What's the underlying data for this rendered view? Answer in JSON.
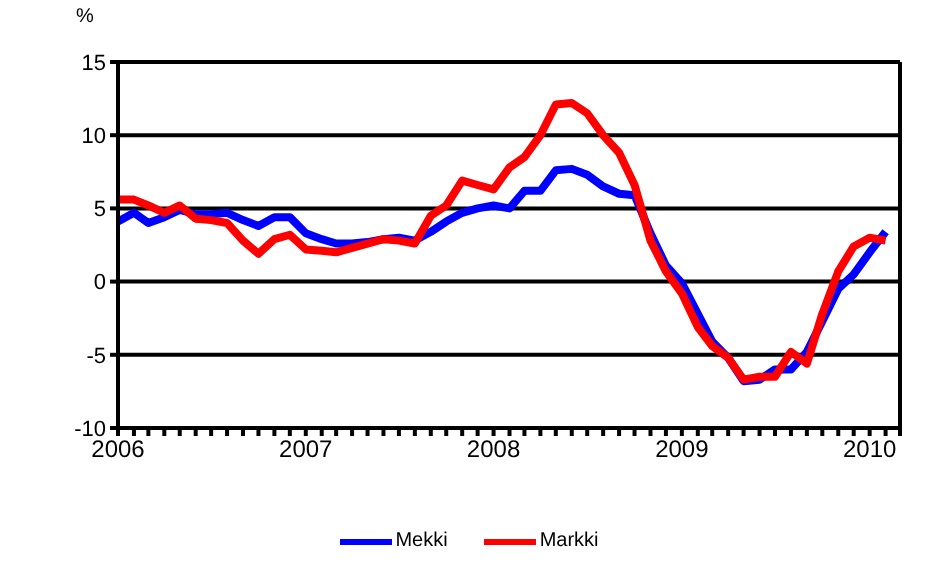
{
  "chart_data": {
    "type": "line",
    "ylabel": "%",
    "ylim": [
      -10,
      15
    ],
    "yticks": [
      -10,
      -5,
      0,
      5,
      10,
      15
    ],
    "grid": "y",
    "legend": "bottom",
    "marker": "none",
    "line_style": "solid",
    "xlim": [
      "2006-01",
      "2010-03"
    ],
    "xticks": [
      {
        "value": "2006-01",
        "label": "2006"
      },
      {
        "value": "2006-02",
        "label": null
      },
      {
        "value": "2006-03",
        "label": null
      },
      {
        "value": "2006-04",
        "label": null
      },
      {
        "value": "2006-05",
        "label": null
      },
      {
        "value": "2006-06",
        "label": null
      },
      {
        "value": "2006-07",
        "label": null
      },
      {
        "value": "2006-08",
        "label": null
      },
      {
        "value": "2006-09",
        "label": null
      },
      {
        "value": "2006-10",
        "label": null
      },
      {
        "value": "2006-11",
        "label": null
      },
      {
        "value": "2006-12",
        "label": null
      },
      {
        "value": "2007-01",
        "label": "2007"
      },
      {
        "value": "2007-02",
        "label": null
      },
      {
        "value": "2007-03",
        "label": null
      },
      {
        "value": "2007-04",
        "label": null
      },
      {
        "value": "2007-05",
        "label": null
      },
      {
        "value": "2007-06",
        "label": null
      },
      {
        "value": "2007-07",
        "label": null
      },
      {
        "value": "2007-08",
        "label": null
      },
      {
        "value": "2007-09",
        "label": null
      },
      {
        "value": "2007-10",
        "label": null
      },
      {
        "value": "2007-11",
        "label": null
      },
      {
        "value": "2007-12",
        "label": null
      },
      {
        "value": "2008-01",
        "label": "2008"
      },
      {
        "value": "2008-02",
        "label": null
      },
      {
        "value": "2008-03",
        "label": null
      },
      {
        "value": "2008-04",
        "label": null
      },
      {
        "value": "2008-05",
        "label": null
      },
      {
        "value": "2008-06",
        "label": null
      },
      {
        "value": "2008-07",
        "label": null
      },
      {
        "value": "2008-08",
        "label": null
      },
      {
        "value": "2008-09",
        "label": null
      },
      {
        "value": "2008-10",
        "label": null
      },
      {
        "value": "2008-11",
        "label": null
      },
      {
        "value": "2008-12",
        "label": null
      },
      {
        "value": "2009-01",
        "label": "2009"
      },
      {
        "value": "2009-02",
        "label": null
      },
      {
        "value": "2009-03",
        "label": null
      },
      {
        "value": "2009-04",
        "label": null
      },
      {
        "value": "2009-05",
        "label": null
      },
      {
        "value": "2009-06",
        "label": null
      },
      {
        "value": "2009-07",
        "label": null
      },
      {
        "value": "2009-08",
        "label": null
      },
      {
        "value": "2009-09",
        "label": null
      },
      {
        "value": "2009-10",
        "label": null
      },
      {
        "value": "2009-11",
        "label": null
      },
      {
        "value": "2009-12",
        "label": null
      },
      {
        "value": "2010-01",
        "label": "2010"
      },
      {
        "value": "2010-02",
        "label": null
      },
      {
        "value": "2010-03",
        "label": null
      }
    ],
    "x": [
      "2006-01",
      "2006-02",
      "2006-03",
      "2006-04",
      "2006-05",
      "2006-06",
      "2006-07",
      "2006-08",
      "2006-09",
      "2006-10",
      "2006-11",
      "2006-12",
      "2007-01",
      "2007-02",
      "2007-03",
      "2007-04",
      "2007-05",
      "2007-06",
      "2007-07",
      "2007-08",
      "2007-09",
      "2007-10",
      "2007-11",
      "2007-12",
      "2008-01",
      "2008-02",
      "2008-03",
      "2008-04",
      "2008-05",
      "2008-06",
      "2008-07",
      "2008-08",
      "2008-09",
      "2008-10",
      "2008-11",
      "2008-12",
      "2009-01",
      "2009-02",
      "2009-03",
      "2009-04",
      "2009-05",
      "2009-06",
      "2009-07",
      "2009-08",
      "2009-09",
      "2009-10",
      "2009-11",
      "2009-12",
      "2010-01",
      "2010-02"
    ],
    "series": [
      {
        "name": "Mekki",
        "color": "#0000ff",
        "values": [
          4.1,
          4.7,
          4.0,
          4.4,
          4.9,
          4.6,
          4.6,
          4.7,
          4.2,
          3.8,
          4.4,
          4.4,
          3.3,
          2.9,
          2.6,
          2.6,
          2.7,
          2.9,
          3.0,
          2.8,
          3.4,
          4.1,
          4.7,
          5.0,
          5.2,
          5.0,
          6.2,
          6.2,
          7.6,
          7.7,
          7.3,
          6.5,
          6.0,
          5.9,
          3.3,
          1.1,
          -0.1,
          -2.2,
          -4.1,
          -5.2,
          -6.8,
          -6.7,
          -6.0,
          -6.0,
          -4.8,
          -2.7,
          -0.5,
          0.5,
          2.0,
          3.4
        ]
      },
      {
        "name": "Markki",
        "color": "#ff0000",
        "values": [
          5.6,
          5.6,
          5.2,
          4.7,
          5.2,
          4.3,
          4.2,
          4.0,
          2.8,
          1.9,
          2.9,
          3.2,
          2.2,
          2.1,
          2.0,
          2.3,
          2.6,
          2.9,
          2.8,
          2.6,
          4.5,
          5.2,
          6.9,
          6.6,
          6.3,
          7.8,
          8.5,
          10.0,
          12.1,
          12.2,
          11.5,
          10.0,
          8.8,
          6.6,
          2.8,
          0.7,
          -0.8,
          -3.1,
          -4.4,
          -5.2,
          -6.7,
          -6.5,
          -6.5,
          -4.8,
          -5.6,
          -2.2,
          0.7,
          2.4,
          3.0,
          2.8
        ]
      }
    ]
  }
}
